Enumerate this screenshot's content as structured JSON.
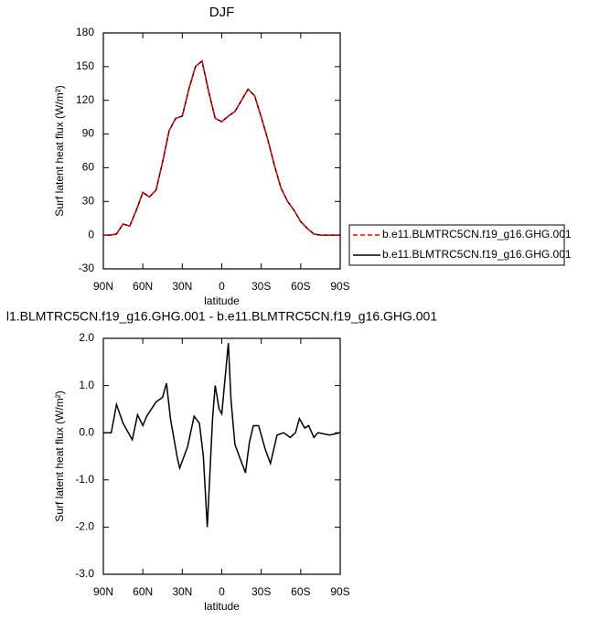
{
  "chart_data": [
    {
      "type": "line",
      "title": "DJF",
      "xlabel": "latitude",
      "ylabel": "Surf latent heat flux (W/m²)",
      "x": [
        90,
        85,
        80,
        75,
        70,
        65,
        60,
        55,
        50,
        45,
        40,
        35,
        30,
        25,
        20,
        15,
        10,
        5,
        0,
        -5,
        -10,
        -15,
        -20,
        -25,
        -30,
        -35,
        -40,
        -45,
        -50,
        -55,
        -60,
        -65,
        -70,
        -75,
        -80,
        -85,
        -90
      ],
      "series": [
        {
          "name": "b.e11.BLMTRC5CN.f19_g16.GHG.001",
          "color": "#ff0000",
          "style": "dashed",
          "values": [
            0,
            0,
            1,
            10,
            8,
            22,
            38,
            34,
            40,
            65,
            93,
            104,
            106,
            130,
            150,
            155,
            128,
            104,
            101,
            106,
            110,
            120,
            130,
            124,
            105,
            85,
            62,
            42,
            30,
            22,
            12,
            6,
            1,
            0,
            0,
            0,
            0
          ]
        },
        {
          "name": "b.e11.BLMTRC5CN.f19_g16.GHG.001",
          "color": "#000000",
          "style": "solid",
          "values": [
            0,
            0,
            1,
            10,
            8,
            22,
            38,
            34,
            40,
            65,
            93,
            104,
            106,
            130,
            150,
            155,
            128,
            104,
            101,
            106,
            110,
            120,
            130,
            124,
            105,
            85,
            62,
            42,
            30,
            22,
            12,
            6,
            1,
            0,
            0,
            0,
            0
          ]
        }
      ],
      "xlim": [
        90,
        -90
      ],
      "xticks": [
        {
          "value": 90,
          "label": "90N"
        },
        {
          "value": 60,
          "label": "60N"
        },
        {
          "value": 30,
          "label": "30N"
        },
        0,
        {
          "value": -30,
          "label": "30S"
        },
        {
          "value": -60,
          "label": "60S"
        },
        {
          "value": -90,
          "label": "90S"
        }
      ],
      "ylim": [
        -30,
        180
      ],
      "yticks": [
        -30,
        0,
        30,
        60,
        90,
        120,
        150,
        180
      ],
      "legend_position": "right"
    },
    {
      "type": "line",
      "title": "l1.BLMTRC5CN.f19_g16.GHG.001 - b.e11.BLMTRC5CN.f19_g16.GHG.001",
      "xlabel": "latitude",
      "ylabel": "Surf latent heat flux (W/m²)",
      "x": [
        90,
        84,
        80,
        75,
        68,
        64,
        60,
        57,
        50,
        45,
        42,
        39,
        34,
        32,
        26,
        21,
        17,
        14,
        11,
        7,
        5,
        2,
        0,
        -5,
        -7,
        -10,
        -14,
        -18,
        -21,
        -24,
        -28,
        -33,
        -37,
        -42,
        -47,
        -52,
        -56,
        -59,
        -63,
        -66,
        -70,
        -73,
        -82,
        -90
      ],
      "values": [
        0,
        0,
        0.6,
        0.2,
        -0.15,
        0.38,
        0.15,
        0.35,
        0.65,
        0.75,
        1.05,
        0.3,
        -0.5,
        -0.75,
        -0.3,
        0.35,
        0.2,
        -0.5,
        -2.0,
        0.3,
        1.0,
        0.5,
        0.4,
        1.9,
        0.7,
        -0.25,
        -0.55,
        -0.85,
        -0.2,
        0.15,
        0.15,
        -0.35,
        -0.65,
        -0.05,
        0,
        -0.1,
        0,
        0.3,
        0.1,
        0.15,
        -0.1,
        0,
        -0.05,
        0
      ],
      "color": "#000000",
      "xlim": [
        90,
        -90
      ],
      "xticks": [
        {
          "value": 90,
          "label": "90N"
        },
        {
          "value": 60,
          "label": "60N"
        },
        {
          "value": 30,
          "label": "30N"
        },
        0,
        {
          "value": -30,
          "label": "30S"
        },
        {
          "value": -60,
          "label": "60S"
        },
        {
          "value": -90,
          "label": "90S"
        }
      ],
      "ylim": [
        -3,
        2
      ],
      "yticks": [
        {
          "value": -3,
          "label": "-3.0"
        },
        {
          "value": -2,
          "label": "-2.0"
        },
        {
          "value": -1,
          "label": "-1.0"
        },
        {
          "value": 0,
          "label": "0.0"
        },
        {
          "value": 1,
          "label": "1.0"
        },
        {
          "value": 2,
          "label": "2.0"
        }
      ]
    }
  ]
}
